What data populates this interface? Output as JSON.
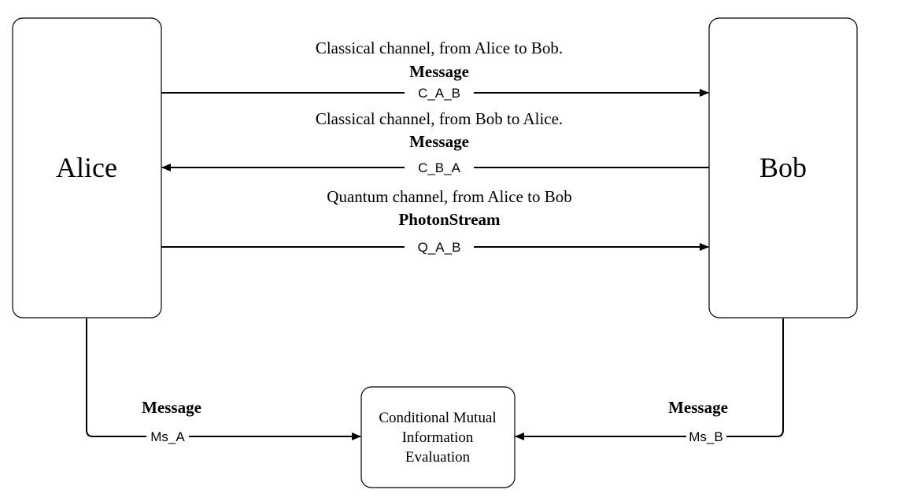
{
  "nodes": {
    "alice": {
      "label": "Alice"
    },
    "bob": {
      "label": "Bob"
    },
    "evaluator": {
      "lines": [
        "Conditional Mutual",
        "Information",
        "Evaluation"
      ]
    }
  },
  "channels": [
    {
      "id": "c_a_b",
      "caption": "Classical channel, from Alice to Bob.",
      "type_label": "Message",
      "edge_label": "C_A_B",
      "direction": "alice-to-bob"
    },
    {
      "id": "c_b_a",
      "caption": "Classical channel, from Bob to Alice.",
      "type_label": "Message",
      "edge_label": "C_B_A",
      "direction": "bob-to-alice"
    },
    {
      "id": "q_a_b",
      "caption": "Quantum channel, from Alice to Bob",
      "type_label": "PhotonStream",
      "edge_label": "Q_A_B",
      "direction": "alice-to-bob"
    }
  ],
  "outputs": {
    "alice": {
      "type_label": "Message",
      "edge_label": "Ms_A"
    },
    "bob": {
      "type_label": "Message",
      "edge_label": "Ms_B"
    }
  },
  "colors": {
    "stroke": "#000000",
    "fill": "#ffffff",
    "text": "#000000"
  }
}
